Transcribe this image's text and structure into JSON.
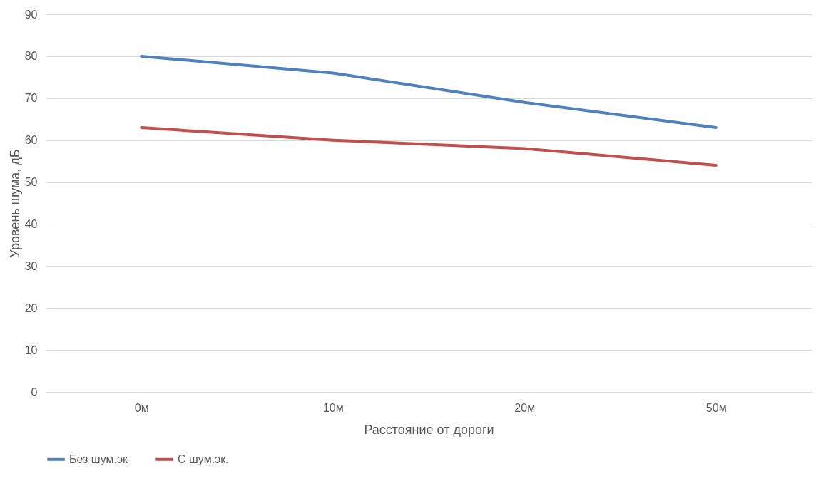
{
  "chart_data": {
    "type": "line",
    "xlabel": "Расстояние от дороги",
    "ylabel": "Уровень шума, дБ",
    "categories": [
      "0м",
      "10м",
      "20м",
      "50м"
    ],
    "series": [
      {
        "name": "Без шум.эк",
        "color": "#4f81bd",
        "values": [
          80,
          76,
          69,
          63
        ]
      },
      {
        "name": "С шум.эк.",
        "color": "#c0504d",
        "values": [
          63,
          60,
          58,
          54
        ]
      }
    ],
    "ylim": [
      0,
      90
    ],
    "yticks": [
      0,
      10,
      20,
      30,
      40,
      50,
      60,
      70,
      80,
      90
    ],
    "grid": "y",
    "legend": "bottom"
  }
}
